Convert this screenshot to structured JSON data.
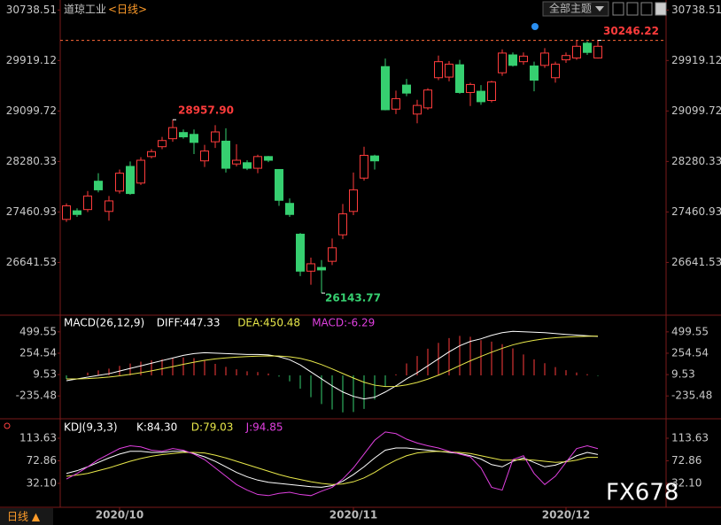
{
  "ui": {
    "symbol": "道琼工业",
    "period": "<日线>",
    "theme_button": "全部主题",
    "bottom_tab": "日线 ▲",
    "watermark": "FX678"
  },
  "chart_data": [
    {
      "type": "candlestick",
      "up_color": "#ff3c3c",
      "down_color": "#36cf70",
      "ylim": [
        25800,
        30901
      ],
      "yticks": [
        30738.51,
        29919.12,
        29099.72,
        28280.33,
        27460.93,
        26641.53
      ],
      "open": [
        27340,
        27480,
        27500,
        27960,
        27470,
        27800,
        28200,
        27930,
        28360,
        28520,
        28650,
        28750,
        28720,
        28290,
        28600,
        28610,
        28240,
        28260,
        28170,
        28360,
        28150,
        27600,
        27100,
        26500,
        26560,
        26660,
        27090,
        27470,
        28010,
        28370,
        29820,
        29130,
        29520,
        29050,
        29150,
        29640,
        29650,
        29850,
        29400,
        29420,
        29270,
        29720,
        30010,
        29900,
        29830,
        29840,
        29640,
        29930,
        29960,
        30200,
        29960
      ],
      "high": [
        27600,
        27520,
        27800,
        28090,
        27720,
        28150,
        28280,
        28350,
        28480,
        28680,
        28957.9,
        28800,
        28800,
        28550,
        28870,
        28820,
        28560,
        28300,
        28390,
        28370,
        28150,
        27680,
        27120,
        26720,
        26680,
        27030,
        27590,
        28100,
        28520,
        28390,
        29950,
        29430,
        29620,
        29280,
        29470,
        30000,
        29910,
        29930,
        29560,
        29520,
        29590,
        30100,
        30050,
        30050,
        29900,
        30120,
        29900,
        30050,
        30250,
        30230,
        30246.22
      ],
      "low": [
        27300,
        27380,
        27460,
        27780,
        27320,
        27760,
        27740,
        27900,
        28330,
        28480,
        28600,
        28650,
        28400,
        28190,
        28500,
        28100,
        28200,
        28140,
        28090,
        28270,
        27560,
        27380,
        26420,
        26280,
        26143.77,
        26600,
        27020,
        27410,
        27970,
        28150,
        29110,
        29050,
        29340,
        28900,
        29120,
        29600,
        29580,
        29380,
        29180,
        29200,
        29240,
        29670,
        29820,
        29850,
        29420,
        29800,
        29560,
        29880,
        29930,
        30010,
        29950
      ],
      "close": [
        27560,
        27420,
        27720,
        27820,
        27640,
        28090,
        27760,
        28300,
        28440,
        28620,
        28830,
        28680,
        28590,
        28450,
        28760,
        28170,
        28300,
        28170,
        28360,
        28300,
        27650,
        27420,
        26500,
        26620,
        26520,
        26880,
        27430,
        27820,
        28380,
        28290,
        29120,
        29300,
        29390,
        29190,
        29440,
        29900,
        29860,
        29400,
        29530,
        29250,
        29570,
        30040,
        29840,
        29990,
        29600,
        30040,
        29860,
        30000,
        30150,
        30050,
        30150
      ],
      "annotations": [
        {
          "value": 28957.9,
          "label": "28957.90",
          "color": "#ff3c3c"
        },
        {
          "value": 26143.77,
          "label": "26143.77",
          "color": "#36cf70"
        },
        {
          "value": 30246.22,
          "label": "30246.22",
          "color": "#ff3c3c",
          "dashed_line": true
        }
      ]
    },
    {
      "type": "combo",
      "title": "MACD(26,12,9)",
      "ylim": [
        -487,
        630
      ],
      "yticks": [
        499.55,
        254.54,
        9.53,
        -235.48
      ],
      "series": [
        {
          "name": "DIFF:447.33",
          "color": "#ffffff",
          "kind": "line",
          "values": [
            -60,
            -40,
            -20,
            0,
            20,
            50,
            80,
            110,
            140,
            170,
            200,
            230,
            250,
            260,
            255,
            250,
            245,
            240,
            240,
            235,
            215,
            180,
            120,
            40,
            -40,
            -120,
            -190,
            -240,
            -270,
            -250,
            -190,
            -120,
            -40,
            30,
            110,
            190,
            270,
            340,
            390,
            420,
            460,
            490,
            505,
            500,
            495,
            490,
            480,
            470,
            462,
            455,
            447.33
          ]
        },
        {
          "name": "DEA:450.48",
          "color": "#e8e84a",
          "kind": "line",
          "values": [
            -40,
            -40,
            -36,
            -29,
            -19,
            -5,
            12,
            31,
            53,
            77,
            101,
            127,
            151,
            173,
            189,
            201,
            210,
            216,
            221,
            224,
            222,
            214,
            196,
            165,
            124,
            75,
            22,
            -30,
            -78,
            -112,
            -128,
            -126,
            -109,
            -81,
            -43,
            3,
            56,
            113,
            168,
            218,
            266,
            311,
            350,
            380,
            403,
            420,
            432,
            440,
            445,
            448,
            450.48
          ]
        },
        {
          "name": "MACD:-6.29",
          "color": "#e040e0",
          "kind": "bar",
          "up_color": "#ff3c3c",
          "down_color": "#36cf70",
          "values": [
            -40,
            0,
            32,
            58,
            78,
            110,
            136,
            158,
            174,
            186,
            198,
            206,
            198,
            174,
            132,
            98,
            70,
            48,
            38,
            22,
            -14,
            -68,
            -152,
            -250,
            -328,
            -390,
            -424,
            -420,
            -384,
            -276,
            -124,
            12,
            138,
            222,
            306,
            374,
            428,
            454,
            444,
            404,
            388,
            358,
            310,
            240,
            184,
            140,
            96,
            60,
            34,
            14,
            -6.29
          ]
        }
      ]
    },
    {
      "type": "line",
      "title": "KDJ(9,3,3)",
      "ylim": [
        -9.5,
        137.6
      ],
      "yticks": [
        113.63,
        72.86,
        {
          "value": 32.1,
          "label": "32.10"
        }
      ],
      "categories": [
        null,
        null,
        null,
        null,
        null,
        "2020/10",
        null,
        null,
        null,
        null,
        null,
        null,
        null,
        null,
        null,
        null,
        null,
        null,
        null,
        null,
        null,
        null,
        null,
        null,
        null,
        null,
        null,
        "2020/11",
        null,
        null,
        null,
        null,
        null,
        null,
        null,
        null,
        null,
        null,
        null,
        null,
        null,
        null,
        null,
        null,
        null,
        null,
        null,
        "2020/12",
        null,
        null,
        null
      ],
      "series": [
        {
          "name": "K:84.30",
          "color": "#ffffff",
          "values": [
            50,
            55,
            62,
            70,
            78,
            85,
            90,
            90,
            88,
            88,
            90,
            90,
            86,
            80,
            72,
            62,
            52,
            44,
            38,
            34,
            32,
            30,
            28,
            26,
            25,
            28,
            36,
            48,
            62,
            78,
            92,
            96,
            96,
            94,
            92,
            90,
            88,
            86,
            82,
            76,
            66,
            62,
            72,
            78,
            70,
            62,
            65,
            72,
            82,
            88,
            84.3
          ]
        },
        {
          "name": "D:79.03",
          "color": "#e8e84a",
          "values": [
            45,
            47,
            50,
            55,
            60,
            66,
            72,
            77,
            81,
            84,
            86,
            88,
            88,
            87,
            83,
            78,
            72,
            66,
            60,
            54,
            48,
            43,
            39,
            35,
            32,
            30,
            31,
            35,
            42,
            52,
            64,
            74,
            82,
            87,
            89,
            90,
            89,
            88,
            86,
            82,
            78,
            74,
            74,
            75,
            74,
            72,
            70,
            71,
            74,
            79,
            79.03
          ]
        },
        {
          "name": "J:94.85",
          "color": "#e040e0",
          "values": [
            40,
            50,
            62,
            75,
            85,
            95,
            100,
            98,
            92,
            90,
            95,
            92,
            85,
            75,
            60,
            45,
            30,
            20,
            12,
            10,
            14,
            16,
            12,
            10,
            18,
            25,
            40,
            60,
            85,
            110,
            125,
            122,
            112,
            105,
            100,
            96,
            90,
            85,
            80,
            60,
            25,
            20,
            75,
            82,
            50,
            30,
            45,
            70,
            95,
            100,
            94.85
          ]
        }
      ]
    }
  ]
}
